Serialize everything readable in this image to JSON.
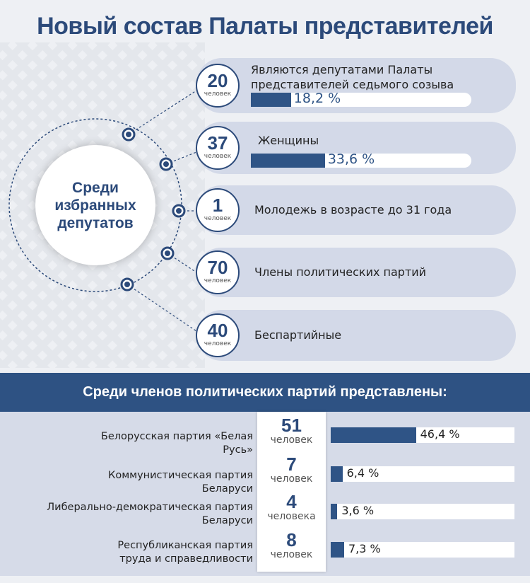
{
  "title": "Новый состав Палаты представителей",
  "center_label": "Среди избранных депутатов",
  "stats": [
    {
      "number": "20",
      "unit": "человек",
      "text": "Являются депутатами Палаты представителей седьмого созыва",
      "percent_label": "18,2 %",
      "percent": 18.2
    },
    {
      "number": "37",
      "unit": "человек",
      "text": "Женщины",
      "percent_label": "33,6 %",
      "percent": 33.6
    },
    {
      "number": "1",
      "unit": "человек",
      "text": "Молодежь в возрасте до 31 года"
    },
    {
      "number": "70",
      "unit": "человек",
      "text": "Члены политических партий"
    },
    {
      "number": "40",
      "unit": "человек",
      "text": "Беспартийные"
    }
  ],
  "parties_title": "Среди членов политических партий представлены:",
  "parties": [
    {
      "name": "Белорусская партия «Белая Русь»",
      "number": "51",
      "unit": "человек",
      "percent_label": "46,4 %",
      "percent": 46.4
    },
    {
      "name": "Коммунистическая партия Беларуси",
      "number": "7",
      "unit": "человек",
      "percent_label": "6,4 %",
      "percent": 6.4
    },
    {
      "name": "Либерально-демократическая партия Беларуси",
      "number": "4",
      "unit": "человека",
      "percent_label": "3,6 %",
      "percent": 3.6
    },
    {
      "name": "Республиканская партия труда и справедливости",
      "number": "8",
      "unit": "человек",
      "percent_label": "7,3 %",
      "percent": 7.3
    }
  ],
  "colors": {
    "accent": "#2f5486",
    "band": "#d3d9e8"
  },
  "chart_data": {
    "type": "bar",
    "orientation": "horizontal",
    "categories": [
      "Белорусская партия «Белая Русь»",
      "Коммунистическая партия Беларуси",
      "Либерально-демократическая партия Беларуси",
      "Республиканская партия труда и справедливости"
    ],
    "values": [
      46.4,
      6.4,
      3.6,
      7.3
    ],
    "xlim": [
      0,
      100
    ]
  }
}
